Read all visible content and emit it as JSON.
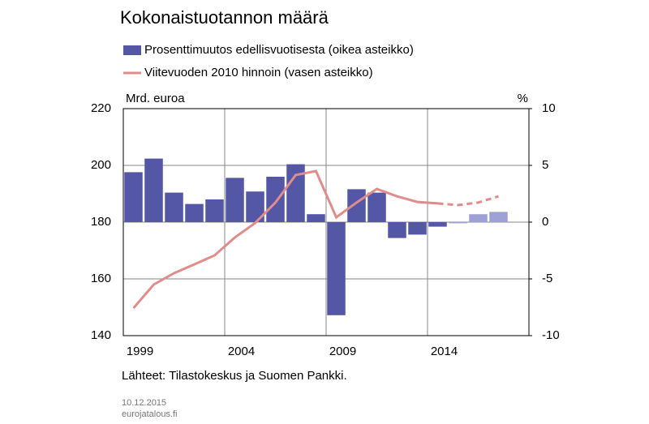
{
  "chart_data": {
    "type": "bar-line",
    "title": "Kokonaistuotannon määrä",
    "x": [
      1999,
      2000,
      2001,
      2002,
      2003,
      2004,
      2005,
      2006,
      2007,
      2008,
      2009,
      2010,
      2011,
      2012,
      2013,
      2014,
      2015,
      2016,
      2017
    ],
    "xlim": [
      1998.5,
      2018.5
    ],
    "xticks": [
      1999,
      2004,
      2009,
      2014
    ],
    "ylim": [
      140,
      220
    ],
    "yticks": [
      140,
      160,
      180,
      200,
      220
    ],
    "ylabel": "Mrd. euroa",
    "y2lim": [
      -10,
      10
    ],
    "y2ticks": [
      -10,
      -5,
      0,
      5,
      10
    ],
    "y2label": "%",
    "forecast_from": 2015,
    "grid": true,
    "series": [
      {
        "name": "Prosenttimuutos edellisvuotisesta (oikea asteikko)",
        "kind": "bar",
        "axis": "y2",
        "color": "#5457a6",
        "forecast_color": "#9ea1d6",
        "values": [
          4.4,
          5.6,
          2.6,
          1.6,
          2.0,
          3.9,
          2.7,
          4.0,
          5.1,
          0.7,
          -8.2,
          2.9,
          2.6,
          -1.4,
          -1.1,
          -0.4,
          -0.1,
          0.7,
          0.9
        ]
      },
      {
        "name": "Viitevuoden 2010 hinnoin (vasen asteikko)",
        "kind": "line",
        "axis": "y",
        "color": "#e08c8c",
        "values": [
          149.7,
          158.0,
          162.0,
          165.1,
          168.3,
          174.6,
          179.7,
          186.9,
          196.6,
          198.0,
          181.7,
          186.9,
          191.7,
          189.1,
          187.1,
          186.6,
          186.0,
          186.9,
          189.1
        ]
      }
    ],
    "source": "Lähteet: Tilastokeskus ja Suomen Pankki.",
    "date": "10.12.2015",
    "site": "eurojatalous.fi"
  }
}
